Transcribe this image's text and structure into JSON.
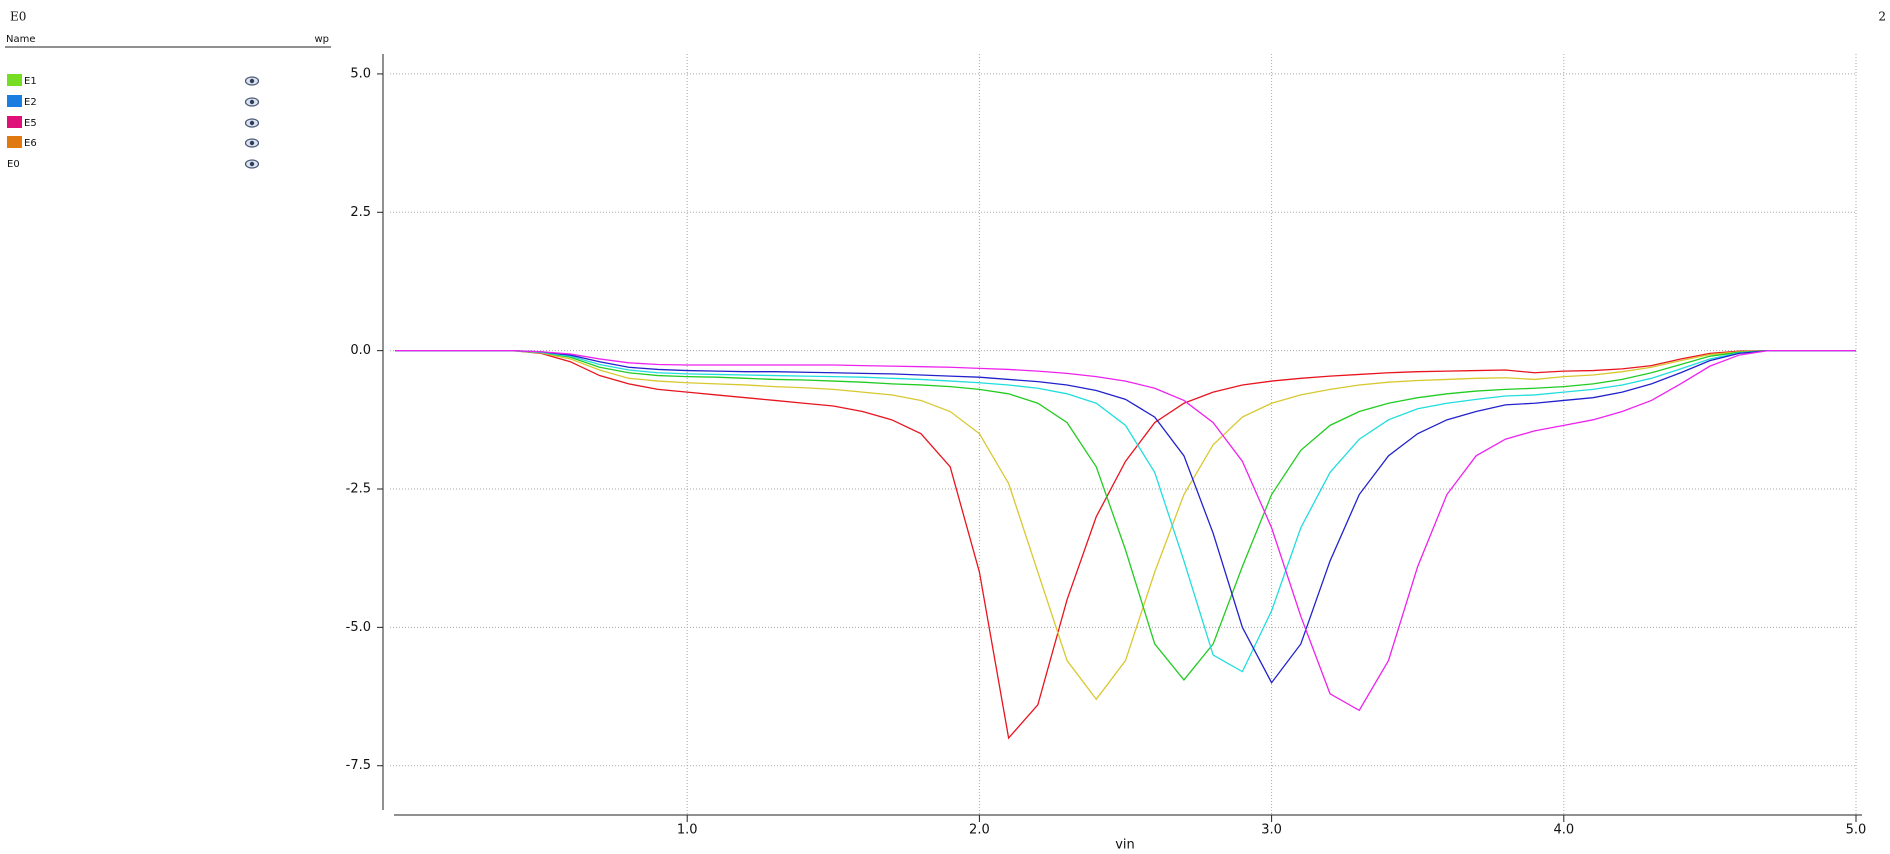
{
  "header": {
    "title": "E0",
    "page": "2"
  },
  "signal_list": {
    "columns": [
      "Name",
      "wp"
    ],
    "items": [
      {
        "name": "E1",
        "color": "#77dd22"
      },
      {
        "name": "E2",
        "color": "#1a7de0"
      },
      {
        "name": "E5",
        "color": "#e0107a"
      },
      {
        "name": "E6",
        "color": "#e07a10"
      },
      {
        "name": "E0"
      }
    ]
  },
  "chart_data": {
    "type": "line",
    "xlabel": "vin",
    "x": [
      0,
      0.1,
      0.2,
      0.3,
      0.4,
      0.5,
      0.6,
      0.7,
      0.8,
      0.9,
      1.0,
      1.1,
      1.2,
      1.3,
      1.4,
      1.5,
      1.6,
      1.7,
      1.8,
      1.9,
      2.0,
      2.1,
      2.2,
      2.3,
      2.4,
      2.5,
      2.6,
      2.7,
      2.8,
      2.9,
      3.0,
      3.1,
      3.2,
      3.3,
      3.4,
      3.5,
      3.6,
      3.7,
      3.8,
      3.9,
      4.0,
      4.1,
      4.2,
      4.3,
      4.4,
      4.5,
      4.6,
      4.7,
      4.8,
      4.9,
      5.0
    ],
    "xlim": [
      0,
      5
    ],
    "ylim": [
      -8.3,
      5.36
    ],
    "xticks": [
      {
        "value": 1,
        "label": "1.0"
      },
      {
        "value": 2,
        "label": "2.0"
      },
      {
        "value": 3,
        "label": "3.0"
      },
      {
        "value": 4,
        "label": "4.0"
      },
      {
        "value": 5,
        "label": "5.0"
      }
    ],
    "yticks": [
      {
        "value": 5,
        "label": "5.0"
      },
      {
        "value": 2.5,
        "label": "2.5"
      },
      {
        "value": 0,
        "label": "0.0"
      },
      {
        "value": -2.5,
        "label": "-2.5"
      },
      {
        "value": -5,
        "label": "-5.0"
      },
      {
        "value": -7.5,
        "label": "-7.5"
      }
    ],
    "grid": true,
    "series": [
      {
        "color": "#e8141e",
        "values": [
          0,
          0,
          0,
          0,
          0,
          -0.05,
          -0.2,
          -0.45,
          -0.6,
          -0.7,
          -0.75,
          -0.8,
          -0.85,
          -0.9,
          -0.95,
          -1.0,
          -1.1,
          -1.25,
          -1.5,
          -2.1,
          -4.0,
          -7.0,
          -6.4,
          -4.5,
          -3.0,
          -2.0,
          -1.3,
          -0.95,
          -0.75,
          -0.62,
          -0.55,
          -0.5,
          -0.46,
          -0.43,
          -0.4,
          -0.38,
          -0.37,
          -0.36,
          -0.35,
          -0.4,
          -0.37,
          -0.36,
          -0.33,
          -0.27,
          -0.15,
          -0.05,
          -0.01,
          0,
          0,
          0,
          0
        ]
      },
      {
        "color": "#d8c830",
        "values": [
          0,
          0,
          0,
          0,
          0,
          -0.04,
          -0.15,
          -0.35,
          -0.5,
          -0.55,
          -0.58,
          -0.6,
          -0.62,
          -0.65,
          -0.67,
          -0.7,
          -0.75,
          -0.8,
          -0.9,
          -1.1,
          -1.5,
          -2.4,
          -4.0,
          -5.6,
          -6.3,
          -5.6,
          -4.0,
          -2.6,
          -1.7,
          -1.2,
          -0.95,
          -0.8,
          -0.7,
          -0.62,
          -0.57,
          -0.54,
          -0.52,
          -0.5,
          -0.49,
          -0.52,
          -0.47,
          -0.44,
          -0.38,
          -0.3,
          -0.18,
          -0.07,
          -0.02,
          0,
          0,
          0,
          0
        ]
      },
      {
        "color": "#22cc22",
        "values": [
          0,
          0,
          0,
          0,
          0,
          -0.03,
          -0.12,
          -0.3,
          -0.4,
          -0.45,
          -0.47,
          -0.48,
          -0.5,
          -0.52,
          -0.53,
          -0.55,
          -0.57,
          -0.6,
          -0.62,
          -0.65,
          -0.7,
          -0.78,
          -0.95,
          -1.3,
          -2.1,
          -3.6,
          -5.3,
          -5.95,
          -5.3,
          -3.9,
          -2.6,
          -1.8,
          -1.35,
          -1.1,
          -0.95,
          -0.85,
          -0.78,
          -0.73,
          -0.7,
          -0.68,
          -0.65,
          -0.6,
          -0.52,
          -0.4,
          -0.25,
          -0.1,
          -0.03,
          0,
          0,
          0,
          0
        ]
      },
      {
        "color": "#22dddd",
        "values": [
          0,
          0,
          0,
          0,
          0,
          -0.03,
          -0.1,
          -0.25,
          -0.35,
          -0.4,
          -0.42,
          -0.43,
          -0.44,
          -0.45,
          -0.46,
          -0.47,
          -0.48,
          -0.5,
          -0.52,
          -0.55,
          -0.58,
          -0.62,
          -0.68,
          -0.78,
          -0.95,
          -1.35,
          -2.2,
          -3.8,
          -5.5,
          -5.8,
          -4.7,
          -3.2,
          -2.2,
          -1.6,
          -1.25,
          -1.05,
          -0.95,
          -0.88,
          -0.82,
          -0.8,
          -0.75,
          -0.7,
          -0.62,
          -0.5,
          -0.33,
          -0.15,
          -0.04,
          0,
          0,
          0,
          0
        ]
      },
      {
        "color": "#2222cc",
        "values": [
          0,
          0,
          0,
          0,
          0,
          -0.02,
          -0.08,
          -0.2,
          -0.3,
          -0.34,
          -0.36,
          -0.37,
          -0.38,
          -0.38,
          -0.39,
          -0.4,
          -0.41,
          -0.42,
          -0.44,
          -0.46,
          -0.48,
          -0.52,
          -0.56,
          -0.62,
          -0.72,
          -0.88,
          -1.2,
          -1.9,
          -3.3,
          -5.0,
          -6.0,
          -5.3,
          -3.8,
          -2.6,
          -1.9,
          -1.5,
          -1.25,
          -1.1,
          -0.98,
          -0.95,
          -0.9,
          -0.85,
          -0.75,
          -0.6,
          -0.4,
          -0.18,
          -0.05,
          0,
          0,
          0,
          0
        ]
      },
      {
        "color": "#ee22ee",
        "values": [
          0,
          0,
          0,
          0,
          0,
          -0.02,
          -0.06,
          -0.15,
          -0.22,
          -0.25,
          -0.26,
          -0.26,
          -0.26,
          -0.26,
          -0.26,
          -0.26,
          -0.27,
          -0.28,
          -0.29,
          -0.3,
          -0.32,
          -0.34,
          -0.37,
          -0.41,
          -0.47,
          -0.55,
          -0.68,
          -0.9,
          -1.3,
          -2.0,
          -3.2,
          -4.8,
          -6.2,
          -6.5,
          -5.6,
          -3.9,
          -2.6,
          -1.9,
          -1.6,
          -1.45,
          -1.35,
          -1.25,
          -1.1,
          -0.9,
          -0.6,
          -0.28,
          -0.08,
          0,
          0,
          0,
          0
        ]
      }
    ]
  }
}
